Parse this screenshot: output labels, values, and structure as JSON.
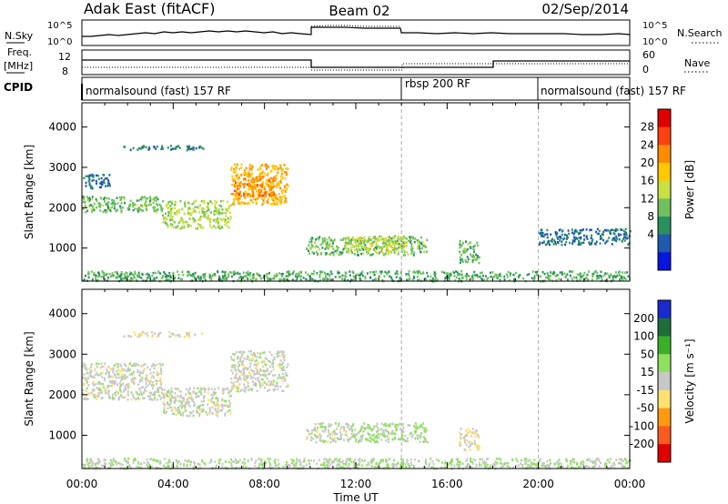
{
  "header": {
    "left": "Adak East (fitACF)",
    "center": "Beam 02",
    "right": "02/Sep/2014"
  },
  "left_labels": {
    "nsky": "N.Sky",
    "freq": "Freq.",
    "freq_unit": "[MHz]",
    "cpid": "CPID"
  },
  "right_labels": {
    "nsearch": "N.Search",
    "nave": "Nave"
  },
  "noise_ticks": {
    "top": "10^5",
    "bottom": "10^0"
  },
  "freq_ticks": {
    "top": "12",
    "bottom": "8"
  },
  "nave_ticks": {
    "top": "60",
    "bottom": "0"
  },
  "cpid_segments": [
    {
      "label": "normalsound (fast) 157 RF",
      "start_hour": 0,
      "end_hour": 14
    },
    {
      "label": "rbsp 200 RF",
      "start_hour": 14,
      "end_hour": 20
    },
    {
      "label": "normalsound (fast) 157 RF",
      "start_hour": 20,
      "end_hour": 24
    }
  ],
  "colorbars": {
    "power": {
      "label": "Power [dB]",
      "ticks": [
        "28",
        "24",
        "20",
        "16",
        "12",
        "8",
        "4"
      ],
      "colors": [
        "#e00000",
        "#ff4010",
        "#ff8c00",
        "#ffc800",
        "#c8e040",
        "#70c060",
        "#2a9060",
        "#1e5ab0",
        "#0a14e0"
      ]
    },
    "velocity": {
      "label": "Velocity [m s⁻¹]",
      "ticks": [
        "200",
        "100",
        "50",
        "15",
        "-15",
        "-50",
        "-100",
        "-200"
      ],
      "colors": [
        "#1a2ad0",
        "#1e6e3c",
        "#3ab028",
        "#90e060",
        "#c8c8c8",
        "#ffe070",
        "#ff9a10",
        "#ff5a20",
        "#e00000"
      ]
    }
  },
  "time_ticks": [
    "00:00",
    "04:00",
    "08:00",
    "12:00",
    "16:00",
    "20:00",
    "00:00"
  ],
  "chart_data": [
    {
      "type": "heatmap",
      "title": "",
      "xlabel": "",
      "ylabel": "Slant Range [km]",
      "xlim": [
        0,
        24
      ],
      "ylim": [
        180,
        4600
      ],
      "yticks": [
        "4000",
        "3000",
        "2000",
        "1000"
      ],
      "ytick_values": [
        4000,
        3000,
        2000,
        1000
      ],
      "colorbar": "power",
      "zlim": [
        0,
        30
      ],
      "features": [
        {
          "t0": 1.8,
          "t1": 5.3,
          "r0": 3450,
          "r1": 3570,
          "z": 6
        },
        {
          "t0": 0.0,
          "t1": 1.2,
          "r0": 2500,
          "r1": 2850,
          "z": 5
        },
        {
          "t0": 0.0,
          "t1": 3.5,
          "r0": 1900,
          "r1": 2300,
          "z": 11
        },
        {
          "t0": 3.5,
          "t1": 6.5,
          "r0": 1500,
          "r1": 2200,
          "z": 14
        },
        {
          "t0": 6.5,
          "t1": 9.0,
          "r0": 2100,
          "r1": 3100,
          "z": 20
        },
        {
          "t0": 6.6,
          "t1": 8.4,
          "r0": 2300,
          "r1": 2800,
          "z": 23
        },
        {
          "t0": 9.8,
          "t1": 15.1,
          "r0": 850,
          "r1": 1320,
          "z": 11
        },
        {
          "t0": 11.5,
          "t1": 14.2,
          "r0": 900,
          "r1": 1300,
          "z": 15
        },
        {
          "t0": 16.5,
          "t1": 17.4,
          "r0": 650,
          "r1": 1200,
          "z": 11
        },
        {
          "t0": 20.0,
          "t1": 24.0,
          "r0": 1100,
          "r1": 1500,
          "z": 5
        },
        {
          "t0": 0.0,
          "t1": 24.0,
          "r0": 200,
          "r1": 450,
          "z": 10
        }
      ]
    },
    {
      "type": "heatmap",
      "title": "",
      "xlabel": "Time UT",
      "ylabel": "Slant Range [km]",
      "xlim": [
        0,
        24
      ],
      "ylim": [
        180,
        4600
      ],
      "yticks": [
        "4000",
        "3000",
        "2000",
        "1000"
      ],
      "ytick_values": [
        4000,
        3000,
        2000,
        1000
      ],
      "colorbar": "velocity",
      "zlim": [
        -200,
        200
      ],
      "features": [
        {
          "t0": 1.8,
          "t1": 5.3,
          "r0": 3450,
          "r1": 3570,
          "z": -20
        },
        {
          "t0": 0.0,
          "t1": 3.5,
          "r0": 1900,
          "r1": 2800,
          "z": 0
        },
        {
          "t0": 3.5,
          "t1": 6.5,
          "r0": 1500,
          "r1": 2200,
          "z": 0
        },
        {
          "t0": 6.5,
          "t1": 9.0,
          "r0": 2100,
          "r1": 3100,
          "z": 0
        },
        {
          "t0": 9.8,
          "t1": 11.8,
          "r0": 850,
          "r1": 1320,
          "z": 0
        },
        {
          "t0": 11.8,
          "t1": 15.1,
          "r0": 850,
          "r1": 1320,
          "z": 35
        },
        {
          "t0": 16.5,
          "t1": 17.4,
          "r0": 650,
          "r1": 1200,
          "z": -20
        },
        {
          "t0": 0.0,
          "t1": 24.0,
          "r0": 200,
          "r1": 450,
          "z": 20
        }
      ]
    }
  ]
}
